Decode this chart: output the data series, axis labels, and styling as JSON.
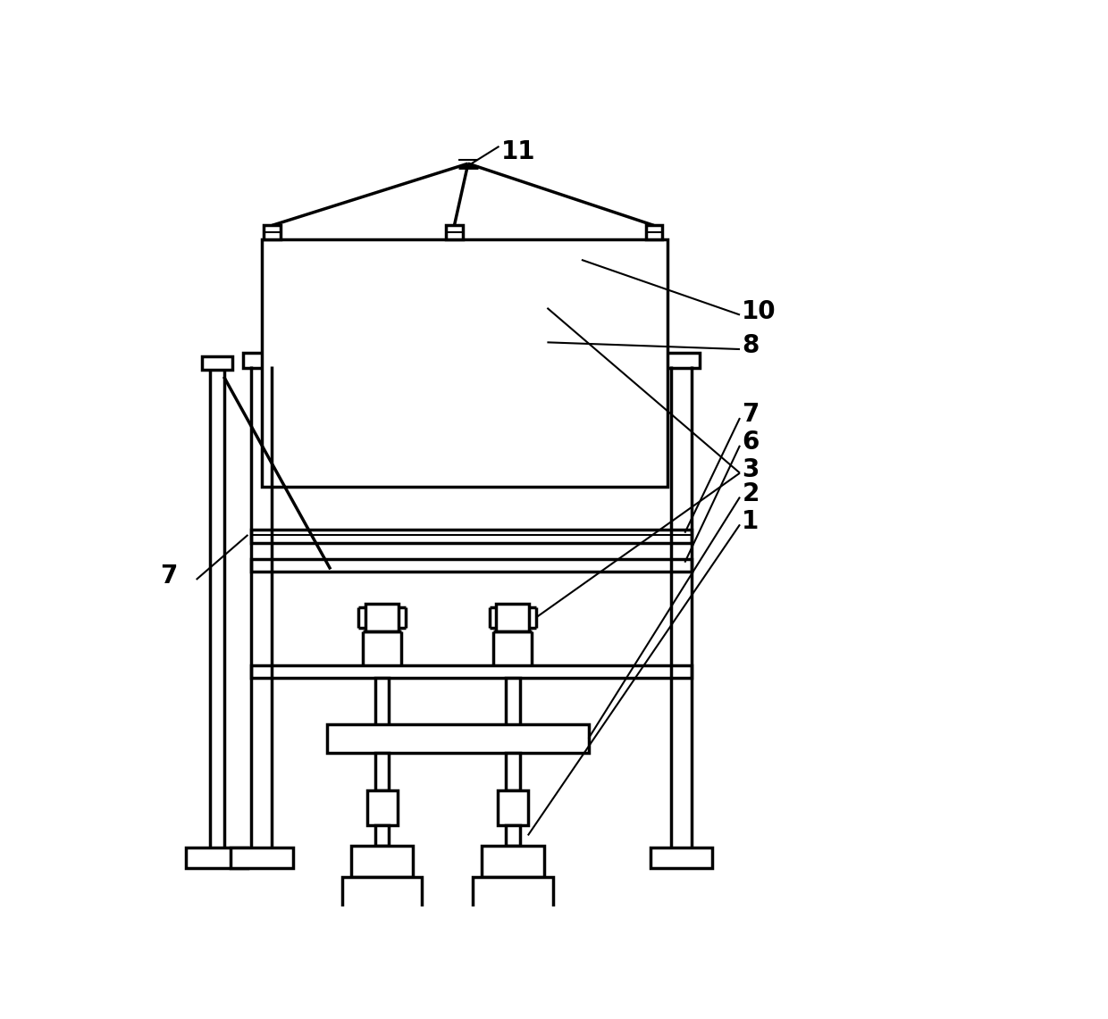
{
  "bg_color": "#ffffff",
  "line_color": "#000000",
  "lw": 2.5,
  "tlw": 1.5,
  "fs": 20,
  "fig_width": 12.4,
  "fig_height": 11.41
}
